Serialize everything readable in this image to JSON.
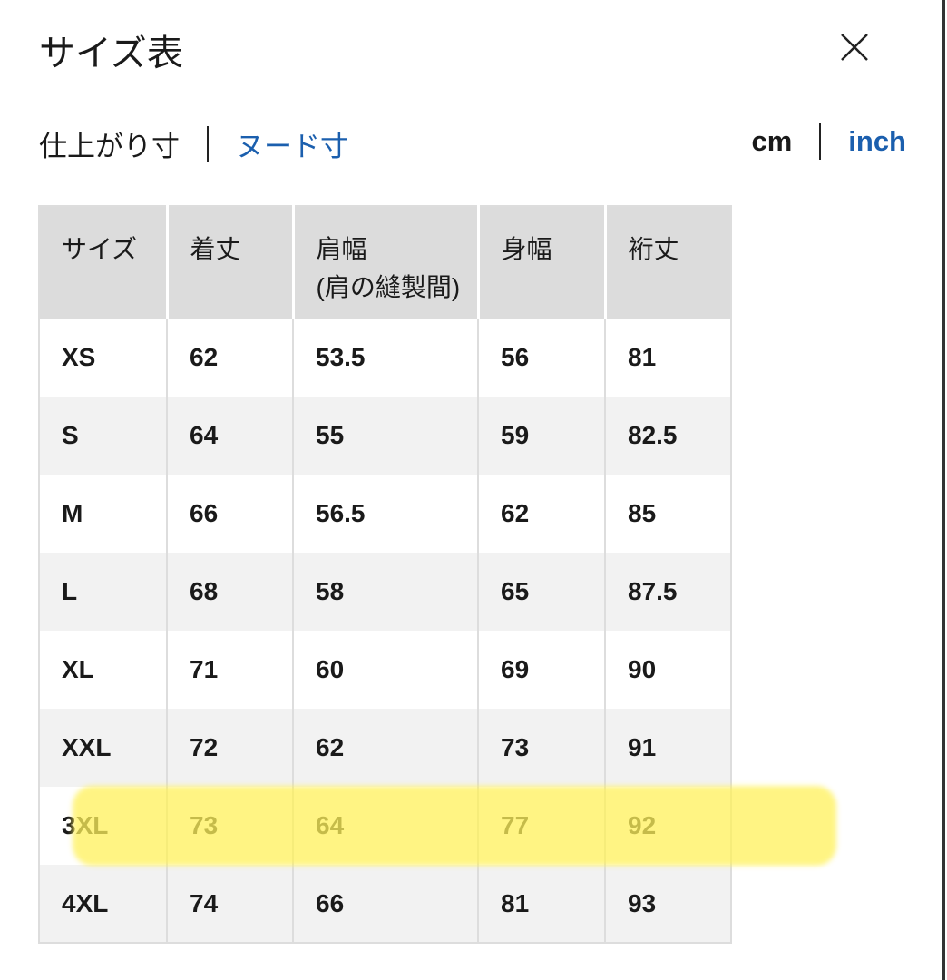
{
  "title": "サイズ表",
  "close_icon": "close-x-icon",
  "measure_tabs": [
    {
      "label": "仕上がり寸",
      "active": true
    },
    {
      "label": "ヌード寸",
      "active": false
    }
  ],
  "unit_tabs": [
    {
      "label": "cm",
      "active": true
    },
    {
      "label": "inch",
      "active": false
    }
  ],
  "link_color": "#1b5fae",
  "highlight_color": "#fff15a",
  "table": {
    "headers": [
      "サイズ",
      "着丈",
      "肩幅",
      "(肩の縫製間)",
      "身幅",
      "裄丈"
    ],
    "rows": [
      [
        "XS",
        "62",
        "53.5",
        "56",
        "81"
      ],
      [
        "S",
        "64",
        "55",
        "59",
        "82.5"
      ],
      [
        "M",
        "66",
        "56.5",
        "62",
        "85"
      ],
      [
        "L",
        "68",
        "58",
        "65",
        "87.5"
      ],
      [
        "XL",
        "71",
        "60",
        "69",
        "90"
      ],
      [
        "XXL",
        "72",
        "62",
        "73",
        "91"
      ],
      [
        "3XL",
        "73",
        "64",
        "77",
        "92"
      ],
      [
        "4XL",
        "74",
        "66",
        "81",
        "93"
      ]
    ],
    "highlighted_row": "3XL"
  }
}
